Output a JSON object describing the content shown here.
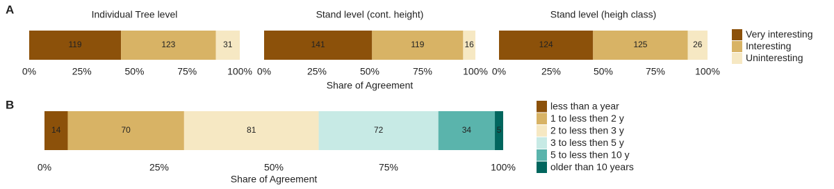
{
  "chart_data": [
    {
      "type": "bar",
      "orientation": "horizontal",
      "stacked": true,
      "panel": "A",
      "title": "Individual Tree level",
      "categories": [
        null
      ],
      "series": [
        {
          "name": "Very interesting",
          "color": "#8c510a",
          "values": [
            119
          ]
        },
        {
          "name": "Interesting",
          "color": "#d8b365",
          "values": [
            123
          ]
        },
        {
          "name": "Uninteresting",
          "color": "#f6e8c3",
          "values": [
            31
          ]
        }
      ],
      "xlim": [
        0,
        273
      ],
      "xticks": [
        {
          "value": 0,
          "label": "0%"
        },
        {
          "value": 68.25,
          "label": "25%"
        },
        {
          "value": 136.5,
          "label": "50%"
        },
        {
          "value": 204.75,
          "label": "75%"
        },
        {
          "value": 273,
          "label": "100%"
        }
      ]
    },
    {
      "type": "bar",
      "orientation": "horizontal",
      "stacked": true,
      "title": "Stand level (cont. height)",
      "xlabel": "Share of Agreement",
      "categories": [
        null
      ],
      "series": [
        {
          "name": "Very interesting",
          "color": "#8c510a",
          "values": [
            141
          ]
        },
        {
          "name": "Interesting",
          "color": "#d8b365",
          "values": [
            119
          ]
        },
        {
          "name": "Uninteresting",
          "color": "#f6e8c3",
          "values": [
            16
          ]
        }
      ],
      "xlim": [
        0,
        276
      ],
      "xticks": [
        {
          "value": 0,
          "label": "0%"
        },
        {
          "value": 69,
          "label": "25%"
        },
        {
          "value": 138,
          "label": "50%"
        },
        {
          "value": 207,
          "label": "75%"
        },
        {
          "value": 276,
          "label": "100%"
        }
      ]
    },
    {
      "type": "bar",
      "orientation": "horizontal",
      "stacked": true,
      "title": "Stand level (heigh class)",
      "legend": "right",
      "categories": [
        null
      ],
      "series": [
        {
          "name": "Very interesting",
          "color": "#8c510a",
          "values": [
            124
          ]
        },
        {
          "name": "Interesting",
          "color": "#d8b365",
          "values": [
            125
          ]
        },
        {
          "name": "Uninteresting",
          "color": "#f6e8c3",
          "values": [
            26
          ]
        }
      ],
      "xlim": [
        0,
        275
      ],
      "xticks": [
        {
          "value": 0,
          "label": "0%"
        },
        {
          "value": 68.75,
          "label": "25%"
        },
        {
          "value": 137.5,
          "label": "50%"
        },
        {
          "value": 206.25,
          "label": "75%"
        },
        {
          "value": 275,
          "label": "100%"
        }
      ]
    },
    {
      "type": "bar",
      "orientation": "horizontal",
      "stacked": true,
      "panel": "B",
      "xlabel": "Share of Agreement",
      "legend": "right",
      "categories": [
        null
      ],
      "series": [
        {
          "name": "less than a year",
          "color": "#8c510a",
          "values": [
            14
          ]
        },
        {
          "name": "1 to less then 2 y",
          "color": "#d8b365",
          "values": [
            70
          ]
        },
        {
          "name": "2 to less then 3 y",
          "color": "#f6e8c3",
          "values": [
            81
          ]
        },
        {
          "name": "3 to less then 5 y",
          "color": "#c7eae5",
          "values": [
            72
          ]
        },
        {
          "name": "5 to less then 10 y",
          "color": "#5ab4ac",
          "values": [
            34
          ]
        },
        {
          "name": "older than 10 years",
          "color": "#01665e",
          "values": [
            5
          ]
        }
      ],
      "xlim": [
        0,
        276
      ],
      "xticks": [
        {
          "value": 0,
          "label": "0%"
        },
        {
          "value": 69,
          "label": "25%"
        },
        {
          "value": 138,
          "label": "50%"
        },
        {
          "value": 207,
          "label": "75%"
        },
        {
          "value": 276,
          "label": "100%"
        }
      ]
    }
  ]
}
